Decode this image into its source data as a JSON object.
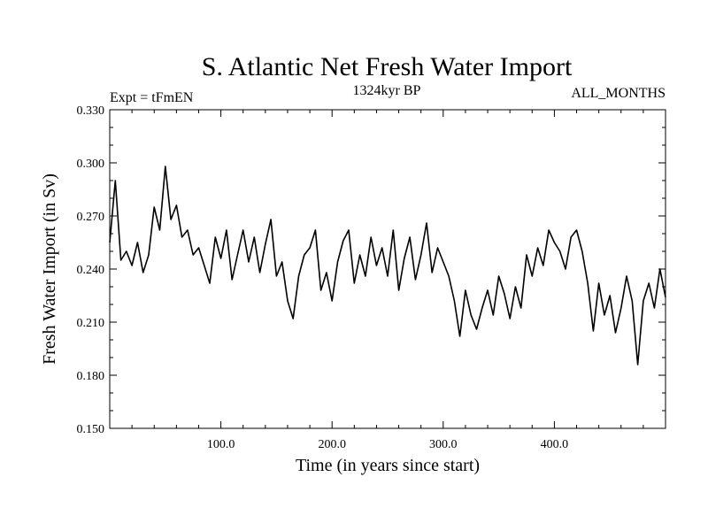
{
  "chart_data": {
    "type": "line",
    "title": "S. Atlantic Net Fresh Water Import",
    "subtitle_left": "Expt = tFmEN",
    "subtitle_center": "1324kyr BP",
    "subtitle_right": "ALL_MONTHS",
    "xlabel": "Time (in years since start)",
    "ylabel": "Fresh Water Import (in Sv)",
    "xlim": [
      0,
      500
    ],
    "ylim": [
      0.15,
      0.33
    ],
    "x_major_ticks": [
      100,
      200,
      300,
      400
    ],
    "x_tick_labels": [
      "100.0",
      "200.0",
      "300.0",
      "400.0"
    ],
    "y_major_ticks": [
      0.15,
      0.18,
      0.21,
      0.24,
      0.27,
      0.3,
      0.33
    ],
    "y_tick_labels": [
      "0.150",
      "0.180",
      "0.210",
      "0.240",
      "0.270",
      "0.300",
      "0.330"
    ],
    "line_color": "#000000",
    "series": [
      {
        "name": "Net Fresh Water Import",
        "x": [
          0,
          5,
          10,
          15,
          20,
          25,
          30,
          35,
          40,
          45,
          50,
          55,
          60,
          65,
          70,
          75,
          80,
          85,
          90,
          95,
          100,
          105,
          110,
          115,
          120,
          125,
          130,
          135,
          140,
          145,
          150,
          155,
          160,
          165,
          170,
          175,
          180,
          185,
          190,
          195,
          200,
          205,
          210,
          215,
          220,
          225,
          230,
          235,
          240,
          245,
          250,
          255,
          260,
          265,
          270,
          275,
          280,
          285,
          290,
          295,
          300,
          305,
          310,
          315,
          320,
          325,
          330,
          335,
          340,
          345,
          350,
          355,
          360,
          365,
          370,
          375,
          380,
          385,
          390,
          395,
          400,
          405,
          410,
          415,
          420,
          425,
          430,
          435,
          440,
          445,
          450,
          455,
          460,
          465,
          470,
          475,
          480,
          485,
          490,
          495,
          500
        ],
        "values": [
          0.255,
          0.29,
          0.245,
          0.25,
          0.242,
          0.255,
          0.238,
          0.248,
          0.275,
          0.262,
          0.298,
          0.268,
          0.276,
          0.258,
          0.262,
          0.248,
          0.252,
          0.242,
          0.232,
          0.258,
          0.246,
          0.262,
          0.234,
          0.248,
          0.262,
          0.244,
          0.258,
          0.238,
          0.254,
          0.268,
          0.236,
          0.244,
          0.222,
          0.212,
          0.236,
          0.248,
          0.252,
          0.262,
          0.228,
          0.238,
          0.222,
          0.244,
          0.256,
          0.262,
          0.232,
          0.248,
          0.236,
          0.258,
          0.242,
          0.252,
          0.236,
          0.262,
          0.228,
          0.246,
          0.258,
          0.234,
          0.248,
          0.266,
          0.238,
          0.252,
          0.244,
          0.236,
          0.222,
          0.202,
          0.228,
          0.214,
          0.206,
          0.218,
          0.228,
          0.214,
          0.236,
          0.226,
          0.212,
          0.23,
          0.218,
          0.248,
          0.236,
          0.252,
          0.242,
          0.262,
          0.255,
          0.25,
          0.24,
          0.258,
          0.262,
          0.25,
          0.232,
          0.205,
          0.232,
          0.214,
          0.225,
          0.204,
          0.218,
          0.236,
          0.222,
          0.186,
          0.222,
          0.232,
          0.218,
          0.24,
          0.224
        ]
      }
    ]
  }
}
